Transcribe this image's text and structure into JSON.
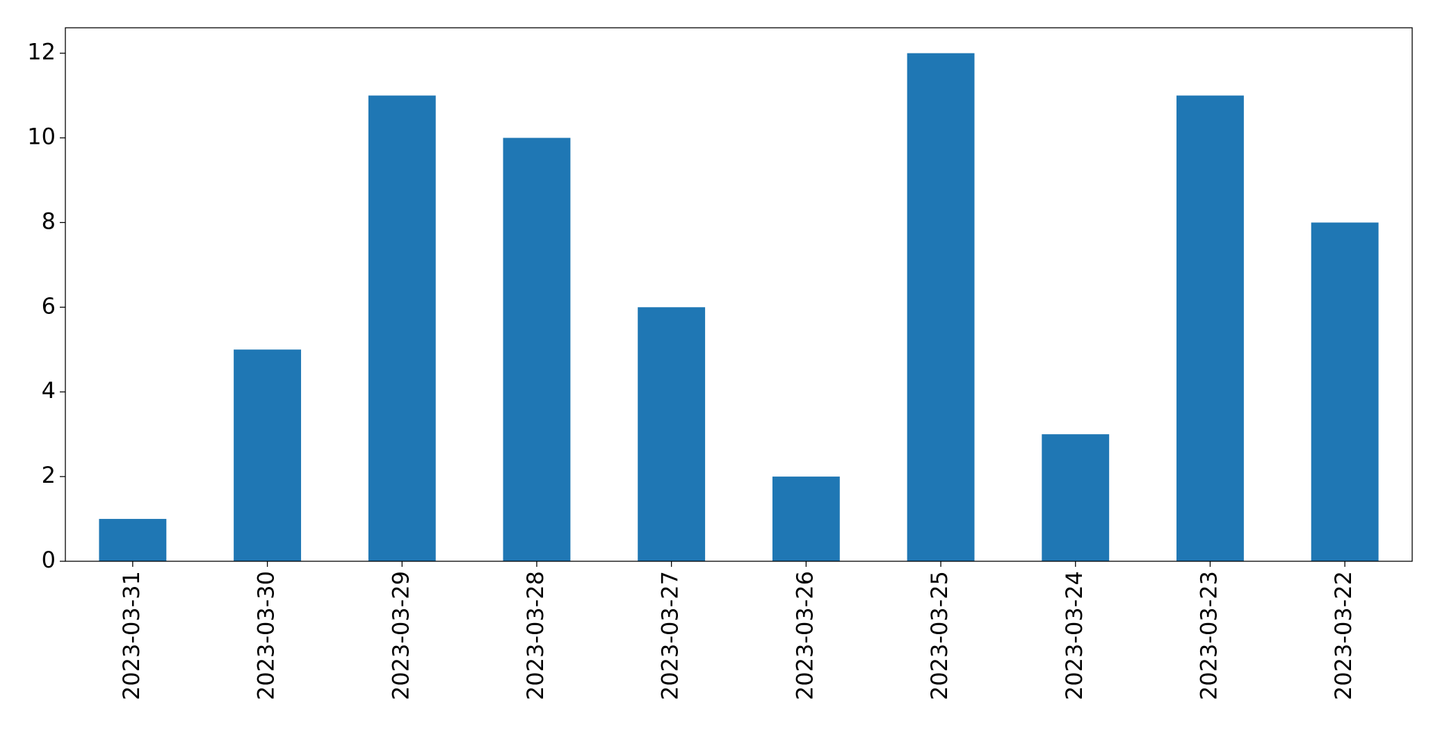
{
  "chart_data": {
    "type": "bar",
    "categories": [
      "2023-03-31",
      "2023-03-30",
      "2023-03-29",
      "2023-03-28",
      "2023-03-27",
      "2023-03-26",
      "2023-03-25",
      "2023-03-24",
      "2023-03-23",
      "2023-03-22"
    ],
    "values": [
      1,
      5,
      11,
      10,
      6,
      2,
      12,
      3,
      11,
      8
    ],
    "color": "#1f77b4",
    "ylim": [
      0,
      12.6
    ],
    "yticks": [
      0,
      2,
      4,
      6,
      8,
      10,
      12
    ],
    "grid": false
  }
}
